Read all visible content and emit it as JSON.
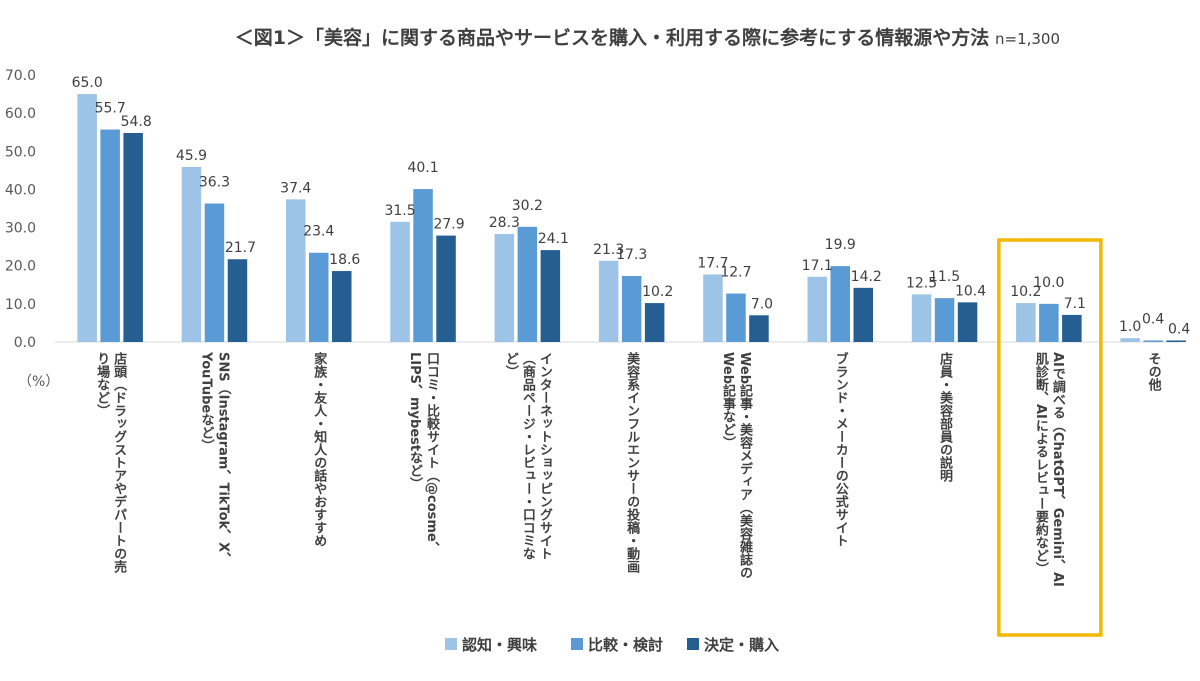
{
  "chart_data": {
    "type": "bar",
    "title": "＜図1＞「美容」に関する商品やサービスを購入・利用する際に参考にする情報源や方法",
    "sample_note": "n=1,300",
    "y_unit": "（%）",
    "ylim": [
      0,
      70
    ],
    "yticks": [
      "0.0",
      "10.0",
      "20.0",
      "30.0",
      "40.0",
      "50.0",
      "60.0",
      "70.0"
    ],
    "grid": false,
    "legend_position": "bottom",
    "categories": [
      [
        "店頭（ドラッグストアやデパートの売",
        "り場など）"
      ],
      [
        "SNS（Instagram、TikTok、X、",
        "YouTubeなど）"
      ],
      [
        "家族・友人・知人の話やおすすめ"
      ],
      [
        "口コミ・比較サイト（@cosme、",
        "LIPS、mybestなど）"
      ],
      [
        "インターネットショッピングサイト",
        "（商品ページ・レビュー・口コミな",
        "ど）"
      ],
      [
        "美容系インフルエンサーの投稿・動画"
      ],
      [
        "Web記事・美容メディア（美容雑誌の",
        "Web記事など）"
      ],
      [
        "ブランド・メーカーの公式サイト"
      ],
      [
        "店員・美容部員の説明"
      ],
      [
        "AIで調べる（ChatGPT、Gemini、AI",
        "肌診断、AIによるレビュー要約など）"
      ],
      [
        "その他"
      ]
    ],
    "series": [
      {
        "name": "認知・興味",
        "color": "#9DC3E6",
        "values": [
          65.0,
          45.9,
          37.4,
          31.5,
          28.3,
          21.3,
          17.7,
          17.1,
          12.5,
          10.2,
          1.0
        ]
      },
      {
        "name": "比較・検討",
        "color": "#5B9BD5",
        "values": [
          55.7,
          36.3,
          23.4,
          40.1,
          30.2,
          17.3,
          12.7,
          19.9,
          11.5,
          10.0,
          0.4
        ]
      },
      {
        "name": "決定・購入",
        "color": "#255E91",
        "values": [
          54.8,
          21.7,
          18.6,
          27.9,
          24.1,
          10.2,
          7.0,
          14.2,
          10.4,
          7.1,
          0.4
        ]
      }
    ],
    "highlight_category_index": 9,
    "highlight_color": "#F2B800"
  }
}
